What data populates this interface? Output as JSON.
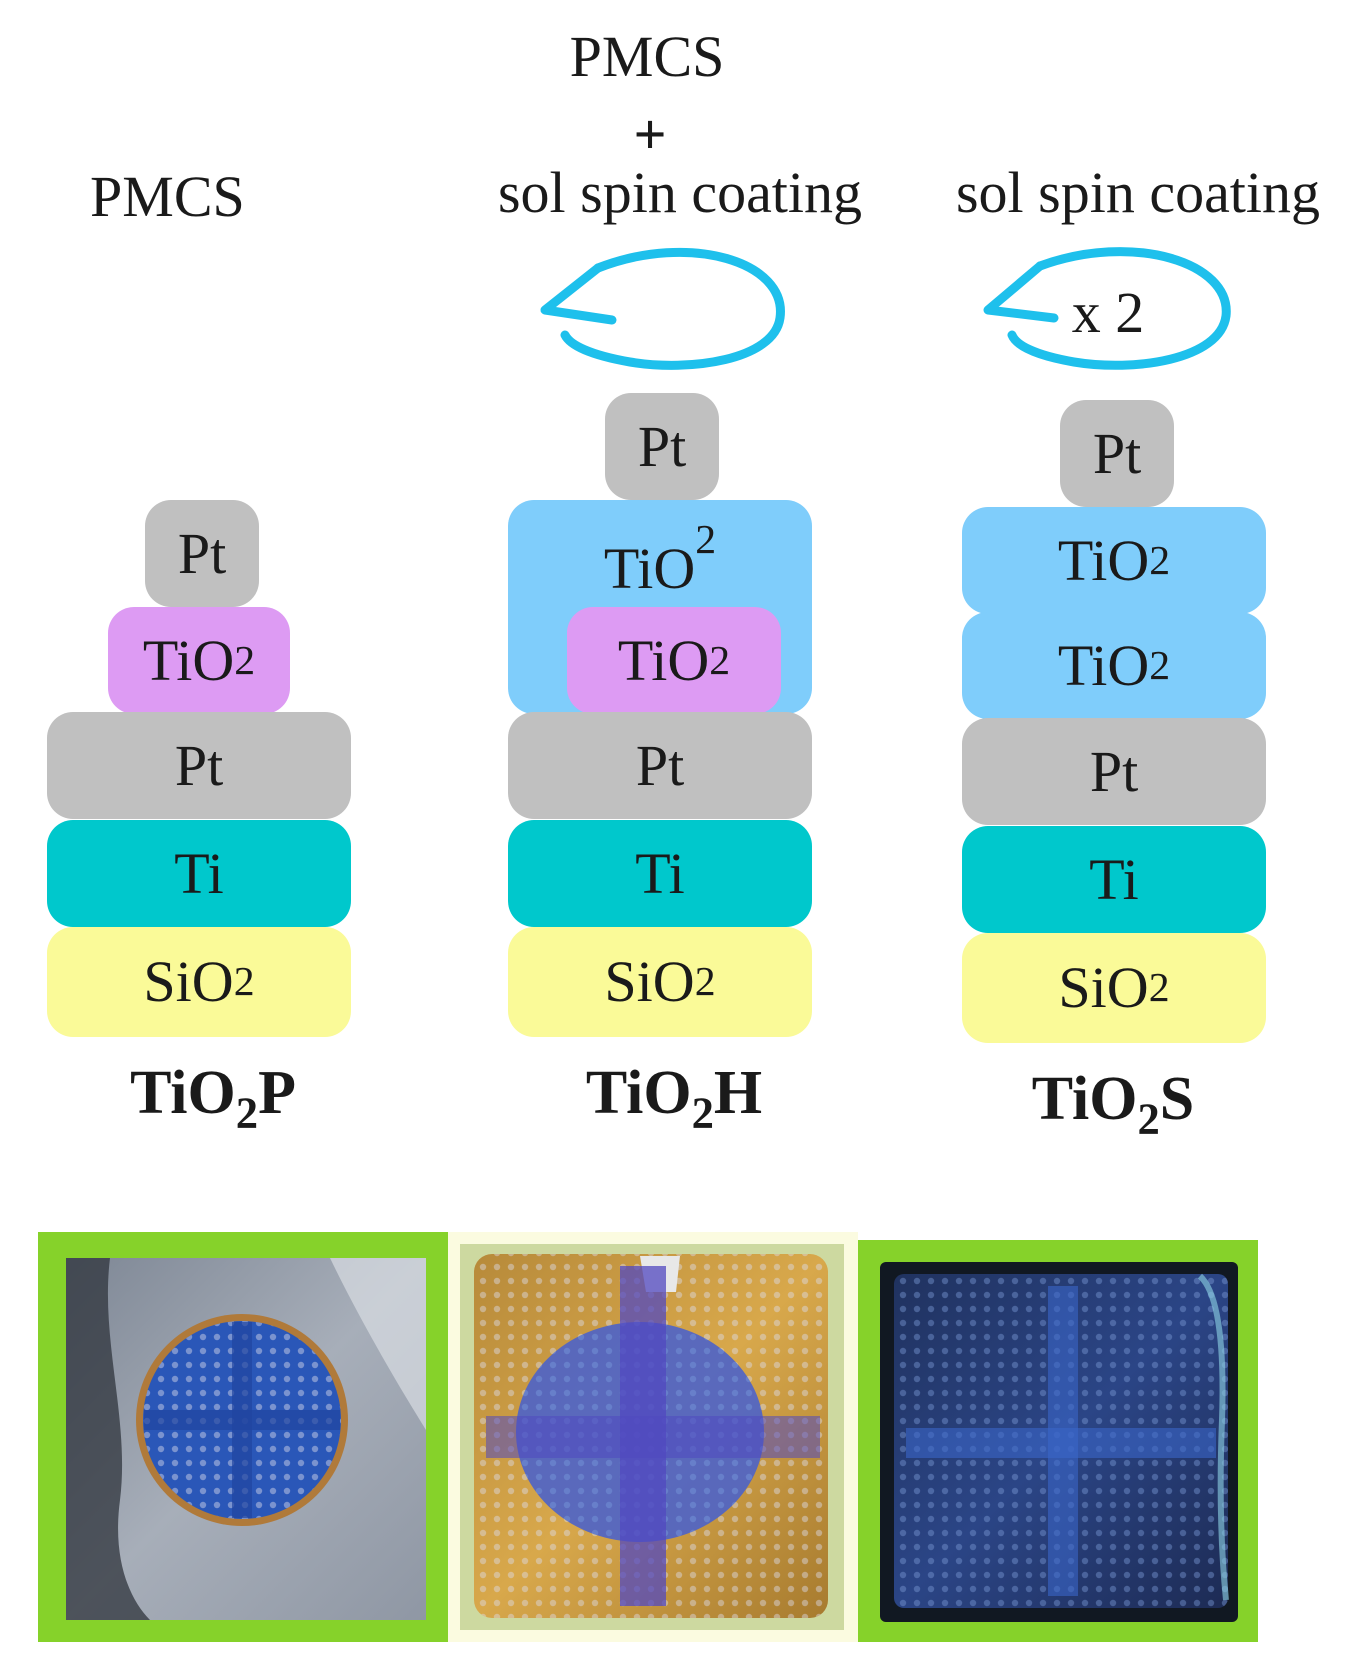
{
  "colors": {
    "pt": "#c0c0c0",
    "tio2_pmcs": "#dd9bf3",
    "tio2_sol": "#7fcdfb",
    "ti": "#00c8cc",
    "sio2": "#fafa98",
    "arrow": "#1ec0ec",
    "photo_border": "#86d22a"
  },
  "columns": [
    {
      "process_label": "PMCS",
      "caption": {
        "main": "TiO",
        "sub": "2",
        "suffix": "P"
      },
      "layers": [
        {
          "main": "Pt",
          "sub": "",
          "kind": "pt"
        },
        {
          "main": "TiO",
          "sub": "2",
          "kind": "tio2_pmcs"
        },
        {
          "main": "Pt",
          "sub": "",
          "kind": "pt"
        },
        {
          "main": "Ti",
          "sub": "",
          "kind": "ti"
        },
        {
          "main": "SiO",
          "sub": "2",
          "kind": "sio2"
        }
      ]
    },
    {
      "process_label_lines": [
        "PMCS",
        "+",
        "sol spin coating"
      ],
      "caption": {
        "main": "TiO",
        "sub": "2",
        "suffix": "H"
      },
      "layers": [
        {
          "main": "Pt",
          "sub": "",
          "kind": "pt"
        },
        {
          "main": "TiO",
          "sub": "2",
          "kind": "tio2_sol"
        },
        {
          "main": "TiO",
          "sub": "2",
          "kind": "tio2_pmcs"
        },
        {
          "main": "Pt",
          "sub": "",
          "kind": "pt"
        },
        {
          "main": "Ti",
          "sub": "",
          "kind": "ti"
        },
        {
          "main": "SiO",
          "sub": "2",
          "kind": "sio2"
        }
      ]
    },
    {
      "process_label": "sol spin coating",
      "repeat_label": "x 2",
      "caption": {
        "main": "TiO",
        "sub": "2",
        "suffix": "S"
      },
      "layers": [
        {
          "main": "Pt",
          "sub": "",
          "kind": "pt"
        },
        {
          "main": "TiO",
          "sub": "2",
          "kind": "tio2_sol"
        },
        {
          "main": "TiO",
          "sub": "2",
          "kind": "tio2_sol"
        },
        {
          "main": "Pt",
          "sub": "",
          "kind": "pt"
        },
        {
          "main": "Ti",
          "sub": "",
          "kind": "ti"
        },
        {
          "main": "SiO",
          "sub": "2",
          "kind": "sio2"
        }
      ]
    }
  ]
}
